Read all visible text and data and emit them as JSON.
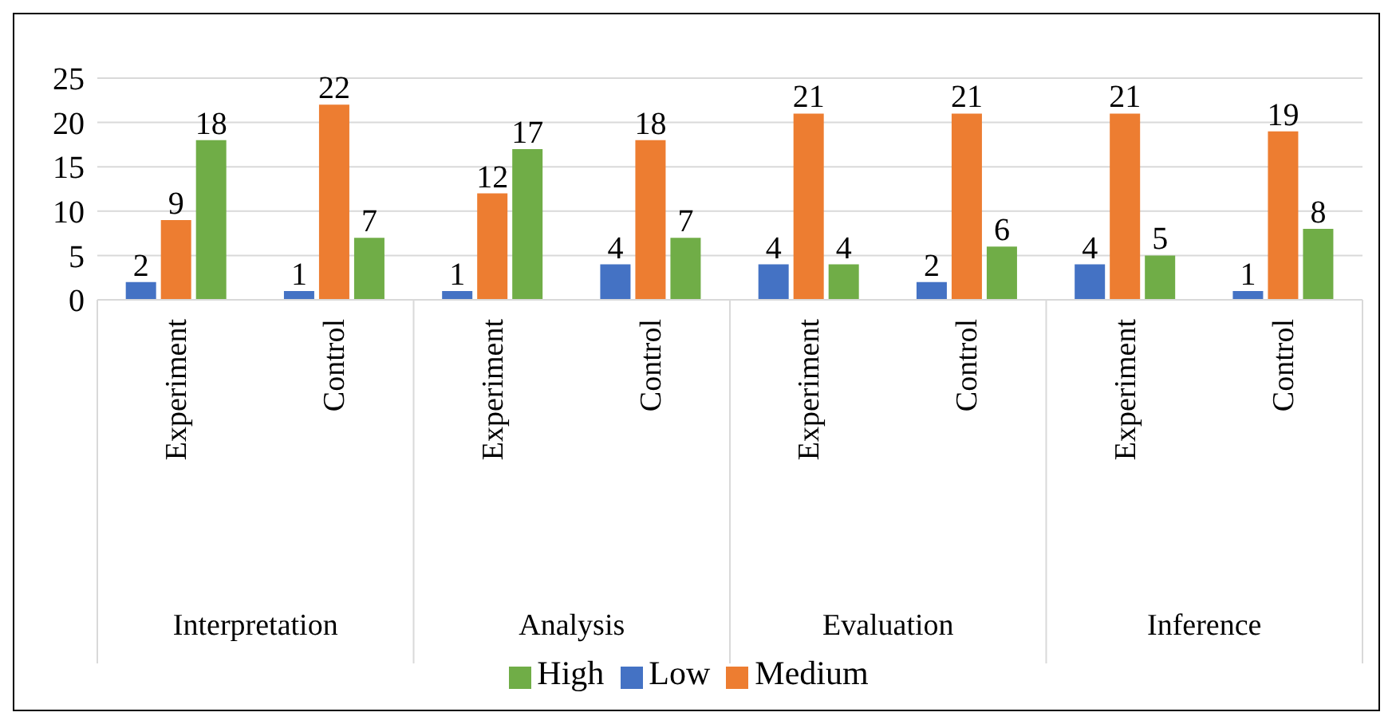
{
  "chart_data": {
    "type": "bar",
    "categories": [
      "Experiment",
      "Control",
      "Experiment",
      "Control",
      "Experiment",
      "Control",
      "Experiment",
      "Control"
    ],
    "annotations": [
      "Interpretation",
      "Analysis",
      "Evaluation",
      "Inference"
    ],
    "series": [
      {
        "name": "Low",
        "color": "#4472c4",
        "values": [
          2,
          1,
          1,
          4,
          4,
          2,
          4,
          1
        ]
      },
      {
        "name": "Medium",
        "color": "#ed7d31",
        "values": [
          9,
          22,
          12,
          18,
          21,
          21,
          21,
          19
        ]
      },
      {
        "name": "High",
        "color": "#70ad47",
        "values": [
          18,
          7,
          17,
          7,
          4,
          6,
          5,
          8
        ]
      }
    ],
    "ylim": [
      0,
      25
    ],
    "yticks": [
      0,
      5,
      10,
      15,
      20,
      25
    ],
    "grid": "y",
    "legend": "bottom",
    "data_labels": true
  }
}
